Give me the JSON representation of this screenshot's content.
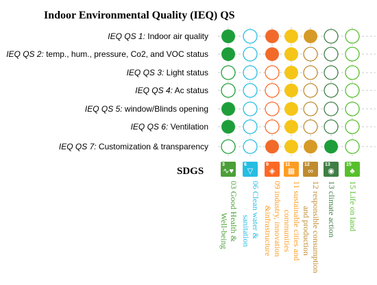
{
  "title": "Indoor Environmental Quality (IEQ) QS",
  "sdgs_label": "SDGS",
  "qs_rows": [
    {
      "code": "IEQ QS 1:",
      "text": "Indoor air quality"
    },
    {
      "code": "IEQ QS 2:",
      "text": "temp., hum., pressure, Co2, and VOC status"
    },
    {
      "code": "IEQ QS 3:",
      "text": "Light status"
    },
    {
      "code": "IEQ QS 4:",
      "text": "Ac status"
    },
    {
      "code": "IEQ QS 5:",
      "text": "window/Blinds opening"
    },
    {
      "code": "IEQ QS 6:",
      "text": "Ventilation"
    },
    {
      "code": "IEQ QS 7:",
      "text": "Customization & transparency"
    }
  ],
  "sdgs": [
    {
      "num": "3",
      "label_line1": "03 Good Health &",
      "label_line2": "Well-being",
      "color": "#4c9f38",
      "icon": "heartbeat-icon",
      "glyph": "∿♥"
    },
    {
      "num": "6",
      "label_line1": "06 Clean water &",
      "label_line2": "sanitation",
      "color": "#26bde2",
      "icon": "water-glass-icon",
      "glyph": "▽"
    },
    {
      "num": "9",
      "label_line1": "09 industry, innovation",
      "label_line2": "&infrastructure",
      "color": "#fd6925",
      "icon": "cubes-icon",
      "glyph": "◈"
    },
    {
      "num": "11",
      "label_line1": "11 sustainable cities and",
      "label_line2": "communities",
      "color": "#fd9d24",
      "icon": "city-icon",
      "glyph": "▦"
    },
    {
      "num": "12",
      "label_line1": "12 responsible consumption",
      "label_line2": "and production",
      "color": "#bf8b2e",
      "icon": "infinity-icon",
      "glyph": "∞"
    },
    {
      "num": "13",
      "label_line1": "13 climate action",
      "label_line2": "",
      "color": "#3f7e44",
      "icon": "eye-globe-icon",
      "glyph": "◉"
    },
    {
      "num": "15",
      "label_line1": "15 Life on land",
      "label_line2": "",
      "color": "#56c02b",
      "icon": "tree-icon",
      "glyph": "♣"
    }
  ],
  "matrix": [
    [
      "filled",
      "empty",
      "filled",
      "filled",
      "filled",
      "empty",
      "empty"
    ],
    [
      "filled",
      "empty",
      "filled",
      "filled",
      "empty",
      "empty",
      "empty"
    ],
    [
      "empty",
      "empty",
      "empty",
      "filled",
      "empty",
      "empty",
      "empty"
    ],
    [
      "empty",
      "empty",
      "empty",
      "filled",
      "empty",
      "empty",
      "empty"
    ],
    [
      "filled",
      "empty",
      "empty",
      "filled",
      "empty",
      "empty",
      "empty"
    ],
    [
      "filled",
      "empty",
      "empty",
      "filled",
      "empty",
      "empty",
      "empty"
    ],
    [
      "empty",
      "empty",
      "filled",
      "filled",
      "filled",
      "filled",
      "empty"
    ]
  ],
  "colors": {
    "gridline": "#c8c8c8",
    "fill_overrides": {
      "0-2": "#f26a2a",
      "1-2": "#f26a2a",
      "6-2": "#f26a2a",
      "col3": "#f5c518",
      "0-4": "#d69a26",
      "6-4": "#d69a26",
      "6-5": "#1e9e3a",
      "col0": "#1e9e3a"
    },
    "label_colors": [
      "#4c9f38",
      "#26bde2",
      "#fd9d24",
      "#fd9d24",
      "#bf8b2e",
      "#3f7e44",
      "#56c02b"
    ]
  }
}
